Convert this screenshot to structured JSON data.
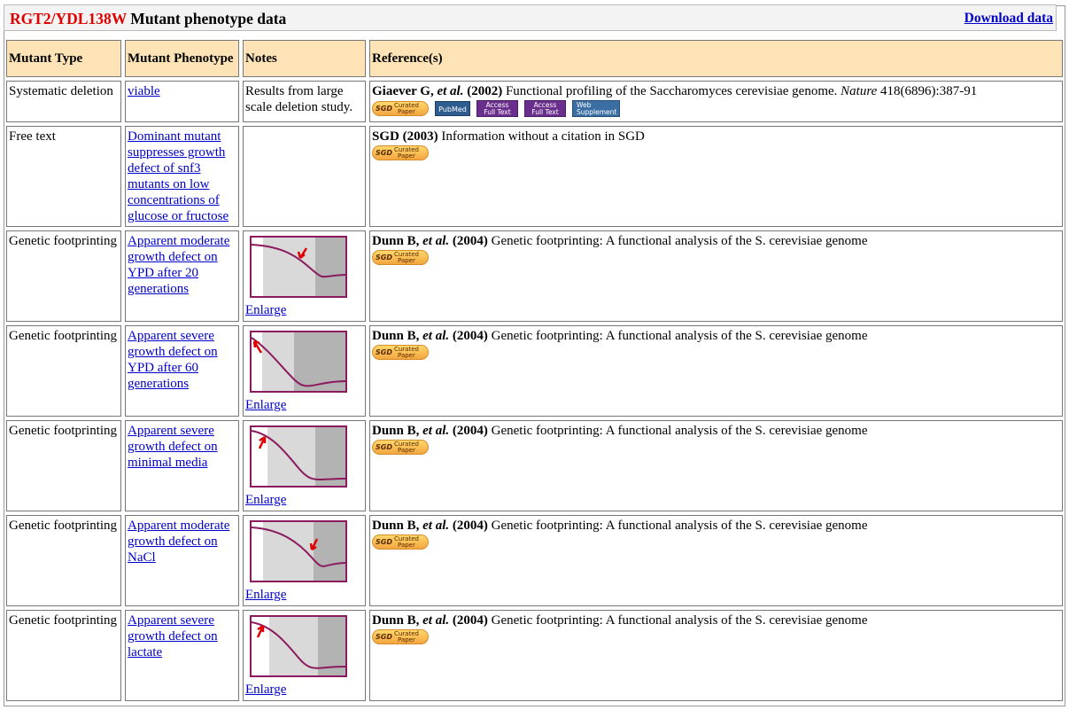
{
  "header": {
    "gene": "RGT2/YDL138W",
    "title": "Mutant phenotype data",
    "download": "Download data"
  },
  "columns": [
    "Mutant Type",
    "Mutant Phenotype",
    "Notes",
    "Reference(s)"
  ],
  "badges": {
    "sgd_left": "SGD",
    "sgd_top": "Curated",
    "sgd_bottom": "Paper",
    "pubmed": "PubMed",
    "access_top": "Access",
    "access_bottom": "Full Text",
    "web_top": "Web",
    "web_bottom": "Supplement"
  },
  "rows": [
    {
      "type": "Systematic deletion",
      "phenotype": "viable",
      "notes": "Results from large scale deletion study.",
      "ref_author": "Giaever G, ",
      "ref_etal": "et al.",
      "ref_year": " (2002)",
      "ref_title": " Functional profiling of the Saccharomyces cerevisiae genome. ",
      "ref_journal": "Nature",
      "ref_citation": " 418(6896):387-91"
    },
    {
      "type": "Free text",
      "phenotype": "Dominant mutant suppresses growth defect of snf3 mutants on low concentrations of glucose or fructose",
      "ref_author": "SGD (2003)",
      "ref_title": " Information without a citation in SGD"
    },
    {
      "type": "Genetic footprinting",
      "phenotype": "Apparent moderate growth defect on YPD after 20 generations",
      "enlarge": "Enlarge",
      "ref_author": "Dunn B, ",
      "ref_etal": "et al.",
      "ref_year": " (2004)",
      "ref_title": " Genetic footprinting: A functional analysis of the S. cerevisiae genome"
    },
    {
      "type": "Genetic footprinting",
      "phenotype": "Apparent severe growth defect on YPD after 60 generations",
      "enlarge": "Enlarge",
      "ref_author": "Dunn B, ",
      "ref_etal": "et al.",
      "ref_year": " (2004)",
      "ref_title": " Genetic footprinting: A functional analysis of the S. cerevisiae genome"
    },
    {
      "type": "Genetic footprinting",
      "phenotype": "Apparent severe growth defect on minimal media",
      "enlarge": "Enlarge",
      "ref_author": "Dunn B, ",
      "ref_etal": "et al.",
      "ref_year": " (2004)",
      "ref_title": " Genetic footprinting: A functional analysis of the S. cerevisiae genome"
    },
    {
      "type": "Genetic footprinting",
      "phenotype": "Apparent moderate growth defect on NaCl",
      "enlarge": "Enlarge",
      "ref_author": "Dunn B, ",
      "ref_etal": "et al.",
      "ref_year": " (2004)",
      "ref_title": " Genetic footprinting: A functional analysis of the S. cerevisiae genome"
    },
    {
      "type": "Genetic footprinting",
      "phenotype": "Apparent severe growth defect on lactate",
      "enlarge": "Enlarge",
      "ref_author": "Dunn B, ",
      "ref_etal": "et al.",
      "ref_year": " (2004)",
      "ref_title": " Genetic footprinting: A functional analysis of the S. cerevisiae genome"
    }
  ],
  "colors": {
    "gene": "#e00000",
    "link": "#0000cc",
    "header_bg": "#fde3b6",
    "curve": "#8b1a5e",
    "arrow": "#e00000"
  }
}
